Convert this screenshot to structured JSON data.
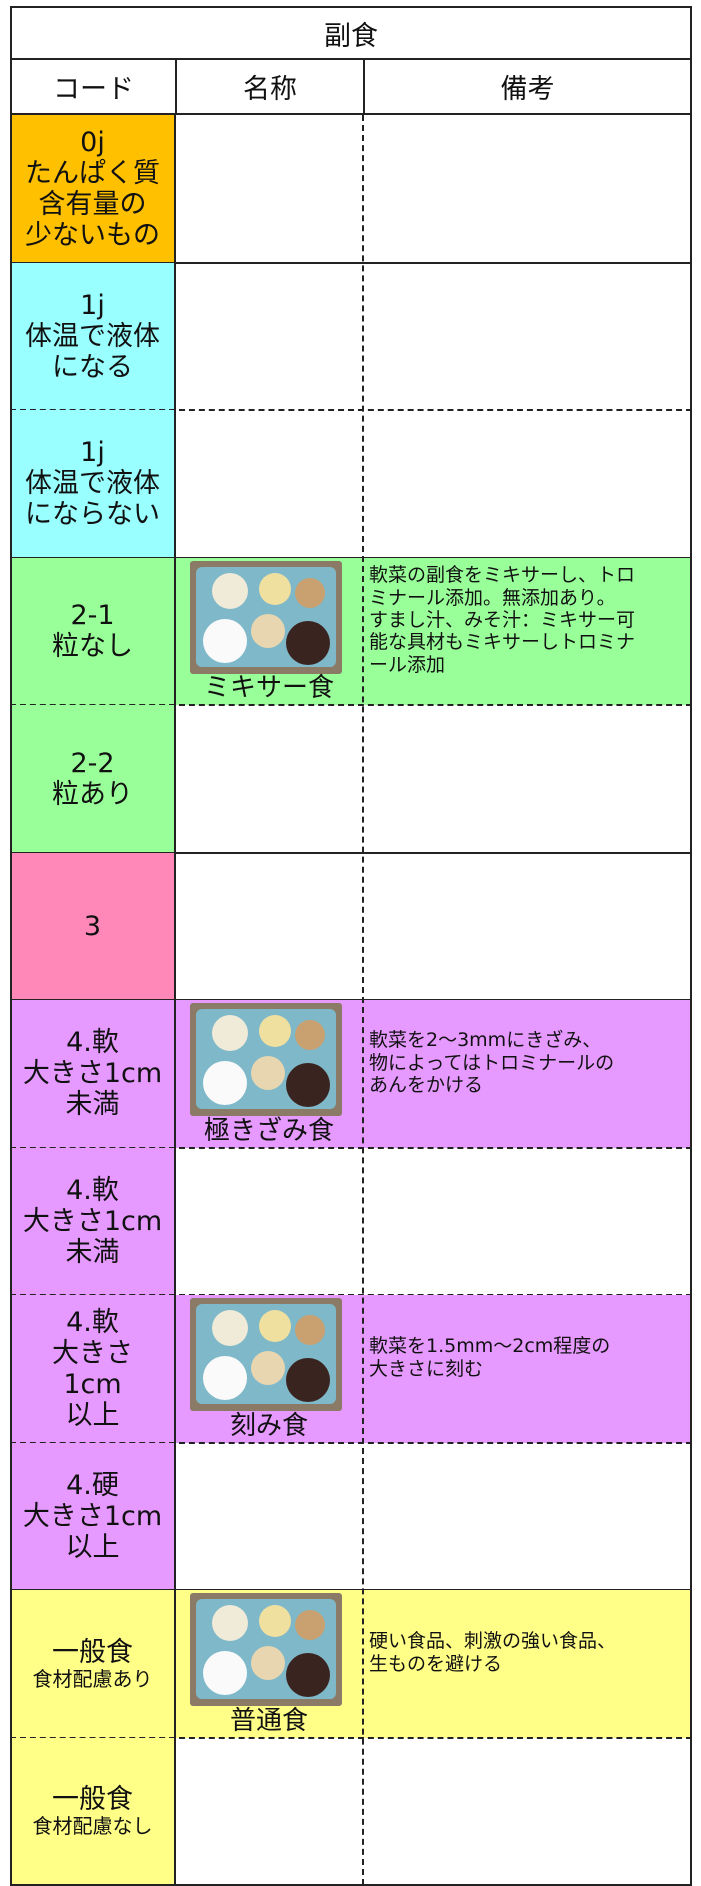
{
  "header": {
    "title": "副食",
    "columns": [
      "コード",
      "名称",
      "備考"
    ]
  },
  "rows": [
    {
      "code": [
        "0j",
        "たんぱく質",
        "含有量の",
        "少ないもの"
      ],
      "color": "#ffc000"
    },
    {
      "code": [
        "1j",
        "体温で液体",
        "になる"
      ],
      "color": "#99ffff"
    },
    {
      "code": [
        "1j",
        "体温で液体",
        "にならない"
      ],
      "color": "#99ffff"
    },
    {
      "code": [
        "2-1",
        "粒なし"
      ],
      "color": "#99ff99",
      "caption": "ミキサー食",
      "note": [
        "軟菜の副食をミキサーし、トロ",
        "ミナール添加。無添加あり。",
        "すまし汁、みそ汁：ミキサー可",
        "能な具材もミキサーしトロミナ",
        "ール添加"
      ]
    },
    {
      "code": [
        "2-2",
        "粒あり"
      ],
      "color": "#99ff99"
    },
    {
      "code": [
        "3"
      ],
      "color": "#ff88b8"
    },
    {
      "code": [
        "4.軟",
        "大きさ1cm",
        "未満"
      ],
      "color": "#e699ff",
      "caption": "極きざみ食",
      "note": [
        "軟菜を2～3mmにきざみ、",
        "物によってはトロミナールの",
        "あんをかける"
      ]
    },
    {
      "code": [
        "4.軟",
        "大きさ1cm",
        "未満"
      ],
      "color": "#e699ff"
    },
    {
      "code": [
        "4.軟",
        "大きさ",
        "1cm",
        "以上"
      ],
      "color": "#e699ff",
      "caption": "刻み食",
      "note": [
        "軟菜を1.5mm～2cm程度の",
        "大きさに刻む"
      ]
    },
    {
      "code": [
        "4.硬",
        "大きさ1cm",
        "以上"
      ],
      "color": "#e699ff"
    },
    {
      "code": [
        "一般食",
        "食材配慮あり"
      ],
      "color": "#ffff88",
      "caption": "普通食",
      "note": [
        "硬い食品、刺激の強い食品、",
        "生ものを避ける"
      ]
    },
    {
      "code": [
        "一般食",
        "食材配慮なし"
      ],
      "color": "#ffff88"
    }
  ]
}
